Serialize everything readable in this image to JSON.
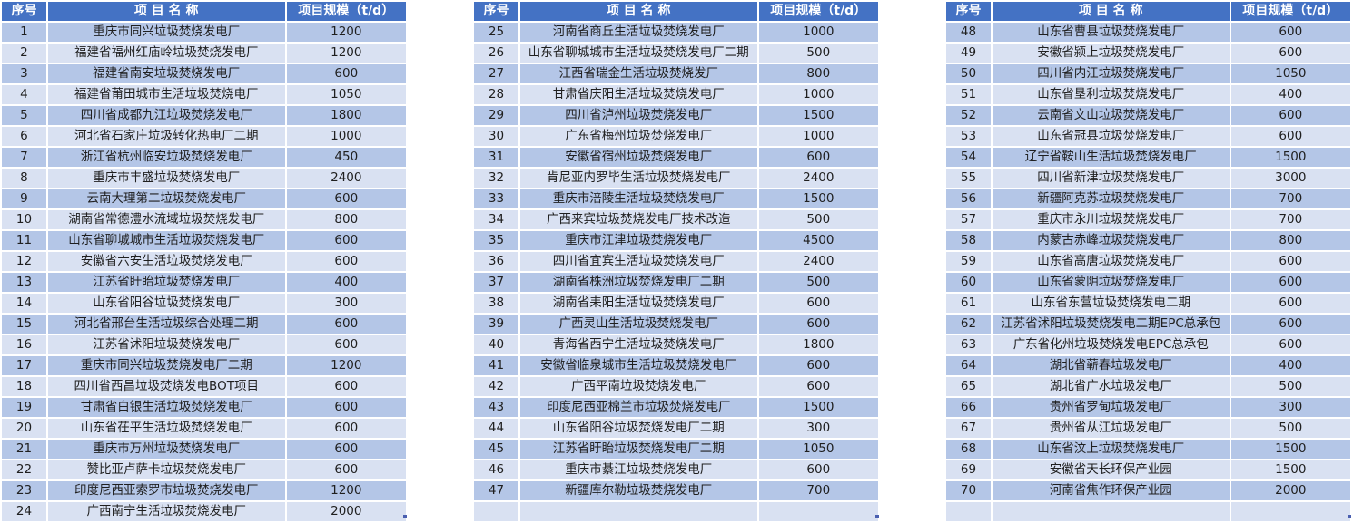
{
  "colors": {
    "header": "#4472C4",
    "row_dark": "#B4C6E7",
    "row_light": "#D9E1F2"
  },
  "headers": {
    "no": "序号",
    "name": "项 目 名 称",
    "scale": "项目规模（t/d）"
  },
  "tables": [
    {
      "rows": [
        {
          "no": "1",
          "name": "重庆市同兴垃圾焚烧发电厂",
          "scale": "1200"
        },
        {
          "no": "2",
          "name": "福建省福州红庙岭垃圾焚烧发电厂",
          "scale": "1200"
        },
        {
          "no": "3",
          "name": "福建省南安垃圾焚烧发电厂",
          "scale": "600"
        },
        {
          "no": "4",
          "name": "福建省莆田城市生活垃圾焚烧电厂",
          "scale": "1050"
        },
        {
          "no": "5",
          "name": "四川省成都九江垃圾焚烧发电厂",
          "scale": "1800"
        },
        {
          "no": "6",
          "name": "河北省石家庄垃圾转化热电厂二期",
          "scale": "1000"
        },
        {
          "no": "7",
          "name": "浙江省杭州临安垃圾焚烧发电厂",
          "scale": "450"
        },
        {
          "no": "8",
          "name": "重庆市丰盛垃圾焚烧发电厂",
          "scale": "2400"
        },
        {
          "no": "9",
          "name": "云南大理第二垃圾焚烧发电厂",
          "scale": "600"
        },
        {
          "no": "10",
          "name": "湖南省常德澧水流域垃圾焚烧发电厂",
          "scale": "800"
        },
        {
          "no": "11",
          "name": "山东省聊城城市生活垃圾焚烧发电厂",
          "scale": "600"
        },
        {
          "no": "12",
          "name": "安徽省六安生活垃圾焚烧发电厂",
          "scale": "600"
        },
        {
          "no": "13",
          "name": "江苏省盱眙垃圾焚烧发电厂",
          "scale": "400"
        },
        {
          "no": "14",
          "name": "山东省阳谷垃圾焚烧发电厂",
          "scale": "300"
        },
        {
          "no": "15",
          "name": "河北省邢台生活垃圾综合处理二期",
          "scale": "600"
        },
        {
          "no": "16",
          "name": "江苏省沭阳垃圾焚烧发电厂",
          "scale": "600"
        },
        {
          "no": "17",
          "name": "重庆市同兴垃圾焚烧发电厂二期",
          "scale": "1200"
        },
        {
          "no": "18",
          "name": "四川省西昌垃圾焚烧发电BOT项目",
          "scale": "600"
        },
        {
          "no": "19",
          "name": "甘肃省白银生活垃圾焚烧发电厂",
          "scale": "600"
        },
        {
          "no": "20",
          "name": "山东省茌平生活垃圾焚烧发电厂",
          "scale": "600"
        },
        {
          "no": "21",
          "name": "重庆市万州垃圾焚烧发电厂",
          "scale": "600"
        },
        {
          "no": "22",
          "name": "赞比亚卢萨卡垃圾焚烧发电厂",
          "scale": "600"
        },
        {
          "no": "23",
          "name": "印度尼西亚索罗市垃圾焚烧发电厂",
          "scale": "1200"
        },
        {
          "no": "24",
          "name": "广西南宁生活垃圾焚烧发电厂",
          "scale": "2000"
        }
      ]
    },
    {
      "rows": [
        {
          "no": "25",
          "name": "河南省商丘生活垃圾焚烧发电厂",
          "scale": "1000"
        },
        {
          "no": "26",
          "name": "山东省聊城城市生活垃圾焚烧发电厂二期",
          "scale": "500"
        },
        {
          "no": "27",
          "name": "江西省瑞金生活垃圾焚烧发厂",
          "scale": "800"
        },
        {
          "no": "28",
          "name": "甘肃省庆阳生活垃圾焚烧发电厂",
          "scale": "1000"
        },
        {
          "no": "29",
          "name": "四川省泸州垃圾焚烧发电厂",
          "scale": "1500"
        },
        {
          "no": "30",
          "name": "广东省梅州垃圾焚烧发电厂",
          "scale": "1000"
        },
        {
          "no": "31",
          "name": "安徽省宿州垃圾焚烧发电厂",
          "scale": "600"
        },
        {
          "no": "32",
          "name": "肯尼亚内罗毕生活垃圾焚烧发电厂",
          "scale": "2400"
        },
        {
          "no": "33",
          "name": "重庆市涪陵生活垃圾焚烧发电厂",
          "scale": "1500"
        },
        {
          "no": "34",
          "name": "广西来宾垃圾焚烧发电厂技术改造",
          "scale": "500"
        },
        {
          "no": "35",
          "name": "重庆市江津垃圾焚烧发电厂",
          "scale": "4500"
        },
        {
          "no": "36",
          "name": "四川省宜宾生活垃圾焚烧发电厂",
          "scale": "2400"
        },
        {
          "no": "37",
          "name": "湖南省株洲垃圾焚烧发电厂二期",
          "scale": "500"
        },
        {
          "no": "38",
          "name": "湖南省耒阳生活垃圾焚烧发电厂",
          "scale": "600"
        },
        {
          "no": "39",
          "name": "广西灵山生活垃圾焚烧发电厂",
          "scale": "600"
        },
        {
          "no": "40",
          "name": "青海省西宁生活垃圾焚烧发电厂",
          "scale": "1800"
        },
        {
          "no": "41",
          "name": "安徽省临泉城市生活垃圾焚烧发电厂",
          "scale": "600"
        },
        {
          "no": "42",
          "name": "广西平南垃圾焚烧发电厂",
          "scale": "600"
        },
        {
          "no": "43",
          "name": "印度尼西亚棉兰市垃圾焚烧发电厂",
          "scale": "1500"
        },
        {
          "no": "44",
          "name": "山东省阳谷垃圾焚烧发电厂二期",
          "scale": "300"
        },
        {
          "no": "45",
          "name": "江苏省盱眙垃圾焚烧发电厂二期",
          "scale": "1050"
        },
        {
          "no": "46",
          "name": "重庆市綦江垃圾焚烧发电厂",
          "scale": "600"
        },
        {
          "no": "47",
          "name": "新疆库尔勒垃圾焚烧发电厂",
          "scale": "700"
        },
        {
          "no": "",
          "name": "",
          "scale": ""
        }
      ]
    },
    {
      "rows": [
        {
          "no": "48",
          "name": "山东省曹县垃圾焚烧发电厂",
          "scale": "600"
        },
        {
          "no": "49",
          "name": "安徽省颍上垃圾焚烧发电厂",
          "scale": "600"
        },
        {
          "no": "50",
          "name": "四川省内江垃圾焚烧发电厂",
          "scale": "1050"
        },
        {
          "no": "51",
          "name": "山东省垦利垃圾焚烧发电厂",
          "scale": "400"
        },
        {
          "no": "52",
          "name": "云南省文山垃圾焚烧发电厂",
          "scale": "600"
        },
        {
          "no": "53",
          "name": "山东省冠县垃圾焚烧发电厂",
          "scale": "600"
        },
        {
          "no": "54",
          "name": "辽宁省鞍山生活垃圾焚烧发电厂",
          "scale": "1500"
        },
        {
          "no": "55",
          "name": "四川省新津垃圾焚烧发电厂",
          "scale": "3000"
        },
        {
          "no": "56",
          "name": "新疆阿克苏垃圾焚烧发电厂",
          "scale": "700"
        },
        {
          "no": "57",
          "name": "重庆市永川垃圾焚烧发电厂",
          "scale": "700"
        },
        {
          "no": "58",
          "name": "内蒙古赤峰垃圾焚烧发电厂",
          "scale": "800"
        },
        {
          "no": "59",
          "name": "山东省高唐垃圾焚烧发电厂",
          "scale": "600"
        },
        {
          "no": "60",
          "name": "山东省蒙阴垃圾焚烧发电厂",
          "scale": "600"
        },
        {
          "no": "61",
          "name": "山东省东营垃圾焚烧发电二期",
          "scale": "600"
        },
        {
          "no": "62",
          "name": "江苏省沭阳垃圾焚烧发电二期EPC总承包",
          "scale": "600"
        },
        {
          "no": "63",
          "name": "广东省化州垃圾焚烧发电EPC总承包",
          "scale": "600"
        },
        {
          "no": "64",
          "name": "湖北省蕲春垃圾发电厂",
          "scale": "400"
        },
        {
          "no": "65",
          "name": "湖北省广水垃圾发电厂",
          "scale": "500"
        },
        {
          "no": "66",
          "name": "贵州省罗甸垃圾发电厂",
          "scale": "300"
        },
        {
          "no": "67",
          "name": "贵州省从江垃圾发电厂",
          "scale": "500"
        },
        {
          "no": "68",
          "name": "山东省汶上垃圾焚烧发电厂",
          "scale": "1500"
        },
        {
          "no": "69",
          "name": "安徽省天长环保产业园",
          "scale": "1500"
        },
        {
          "no": "70",
          "name": "河南省焦作环保产业园",
          "scale": "2000"
        },
        {
          "no": "",
          "name": "",
          "scale": ""
        }
      ]
    }
  ]
}
